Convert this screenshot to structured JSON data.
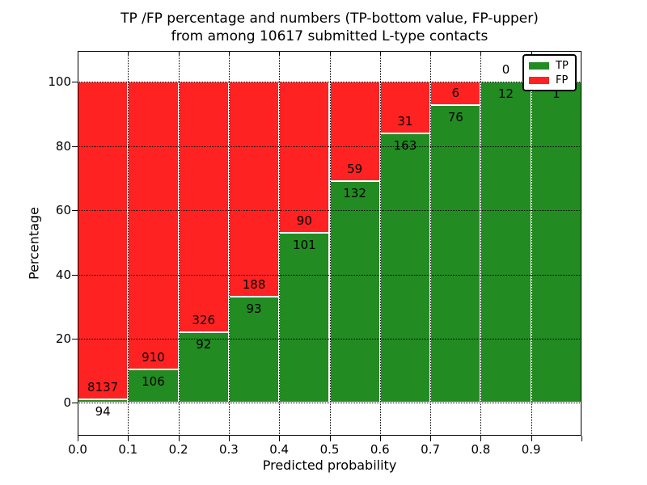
{
  "title": {
    "line1": "TP /FP percentage and numbers (TP-bottom value, FP-upper)",
    "line2": "from among 10617 submitted L-type contacts"
  },
  "axes": {
    "xlabel": "Predicted probability",
    "ylabel": "Percentage",
    "x_tick_labels": [
      "0.0",
      "0.1",
      "0.2",
      "0.3",
      "0.4",
      "0.5",
      "0.6",
      "0.7",
      "0.8",
      "0.9"
    ],
    "y_tick_values": [
      0,
      20,
      40,
      60,
      80,
      100
    ],
    "xlim": [
      0.0,
      1.0
    ],
    "ylim": [
      -10.2,
      109.6
    ],
    "grid_style": "dotted",
    "grid_color": "#000000",
    "background": "#ffffff"
  },
  "legend": {
    "position": "upper-right",
    "items": [
      {
        "label": "TP",
        "color": "#228b22"
      },
      {
        "label": "FP",
        "color": "#ff2222"
      }
    ]
  },
  "chart_data": {
    "type": "bar",
    "stacked": true,
    "orientation": "vertical",
    "normalized_to_percent": true,
    "x_bin_starts": [
      0.0,
      0.1,
      0.2,
      0.3,
      0.4,
      0.5,
      0.6,
      0.7,
      0.8,
      0.9
    ],
    "bin_width": 0.1,
    "series": [
      {
        "name": "TP",
        "color": "#228b22",
        "stack_position": "bottom",
        "counts": [
          94,
          106,
          92,
          93,
          101,
          132,
          163,
          76,
          12,
          1
        ]
      },
      {
        "name": "FP",
        "color": "#ff2222",
        "stack_position": "top",
        "counts": [
          8137,
          910,
          326,
          188,
          90,
          59,
          31,
          6,
          0,
          0
        ]
      }
    ],
    "tp_percent": [
      1.14,
      10.43,
      22.01,
      33.1,
      52.88,
      69.11,
      84.02,
      92.68,
      100.0,
      100.0
    ],
    "bar_value_labels": {
      "tp": [
        "94",
        "106",
        "92",
        "93",
        "101",
        "132",
        "163",
        "76",
        "12",
        "1"
      ],
      "fp": [
        "8137",
        "910",
        "326",
        "188",
        "90",
        "59",
        "31",
        "6",
        "0",
        ""
      ]
    },
    "total_contacts": 10617
  }
}
